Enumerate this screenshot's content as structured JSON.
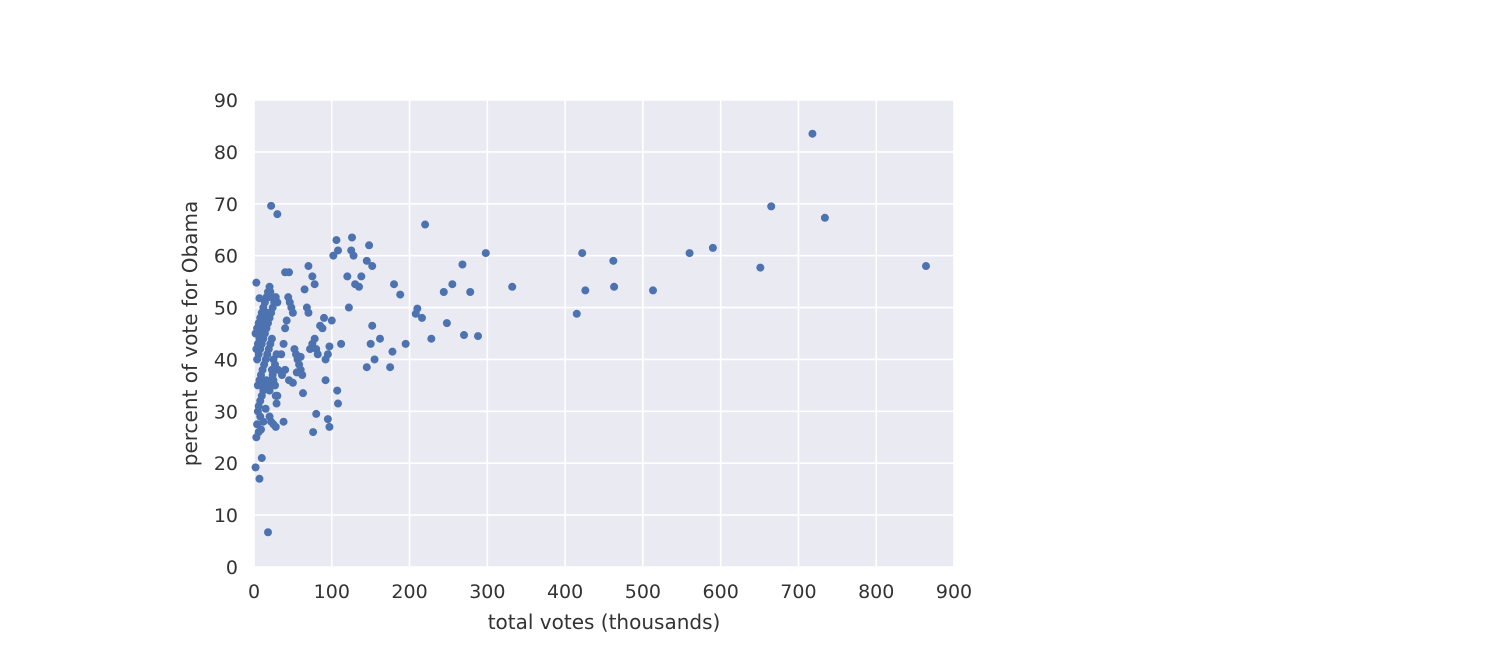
{
  "chart_data": {
    "type": "scatter",
    "title": "",
    "xlabel": "total votes (thousands)",
    "ylabel": "percent of vote for Obama",
    "xlim": [
      0,
      900
    ],
    "ylim": [
      0,
      90
    ],
    "xticks": [
      "0",
      "100",
      "200",
      "300",
      "400",
      "500",
      "600",
      "700",
      "800",
      "900"
    ],
    "yticks": [
      "0",
      "10",
      "20",
      "30",
      "40",
      "50",
      "60",
      "70",
      "80",
      "90"
    ],
    "grid": true,
    "legend": "none",
    "colors": {
      "point": "#4c72b0",
      "plot_bg": "#eaeaf2",
      "grid": "#ffffff",
      "text": "#333333"
    },
    "series": [
      {
        "points": [
          [
            2,
            19.2
          ],
          [
            7,
            17
          ],
          [
            10,
            21
          ],
          [
            18,
            6.7
          ],
          [
            22,
            69.6
          ],
          [
            30,
            68
          ],
          [
            3,
            25
          ],
          [
            6,
            26
          ],
          [
            9,
            26.5
          ],
          [
            4,
            27.5
          ],
          [
            8,
            29
          ],
          [
            12,
            28
          ],
          [
            15,
            30.5
          ],
          [
            20,
            29
          ],
          [
            22,
            28
          ],
          [
            25,
            27.5
          ],
          [
            28,
            27
          ],
          [
            38,
            28
          ],
          [
            5,
            30
          ],
          [
            6,
            31
          ],
          [
            8,
            32
          ],
          [
            10,
            33
          ],
          [
            12,
            34
          ],
          [
            14,
            35
          ],
          [
            16,
            36
          ],
          [
            18,
            35
          ],
          [
            20,
            34
          ],
          [
            22,
            36
          ],
          [
            24,
            37
          ],
          [
            26,
            38
          ],
          [
            28,
            33
          ],
          [
            30,
            33
          ],
          [
            4,
            40
          ],
          [
            6,
            41
          ],
          [
            8,
            42
          ],
          [
            10,
            43
          ],
          [
            12,
            44
          ],
          [
            14,
            45
          ],
          [
            16,
            46
          ],
          [
            18,
            47
          ],
          [
            20,
            48
          ],
          [
            22,
            49
          ],
          [
            24,
            50
          ],
          [
            26,
            51
          ],
          [
            28,
            52
          ],
          [
            30,
            51
          ],
          [
            3,
            42
          ],
          [
            5,
            43
          ],
          [
            7,
            44
          ],
          [
            9,
            45
          ],
          [
            11,
            46
          ],
          [
            13,
            47
          ],
          [
            15,
            48
          ],
          [
            17,
            49
          ],
          [
            19,
            52
          ],
          [
            21,
            53
          ],
          [
            23,
            44
          ],
          [
            25,
            40
          ],
          [
            27,
            39
          ],
          [
            29,
            41
          ],
          [
            5,
            35
          ],
          [
            7,
            36
          ],
          [
            9,
            37
          ],
          [
            11,
            38
          ],
          [
            13,
            39
          ],
          [
            15,
            40
          ],
          [
            17,
            41
          ],
          [
            19,
            42
          ],
          [
            21,
            43
          ],
          [
            23,
            38
          ],
          [
            25,
            36
          ],
          [
            27,
            35
          ],
          [
            29,
            31.5
          ],
          [
            31,
            38
          ],
          [
            2,
            45
          ],
          [
            4,
            46
          ],
          [
            6,
            47
          ],
          [
            8,
            48
          ],
          [
            10,
            49
          ],
          [
            12,
            50
          ],
          [
            14,
            51
          ],
          [
            16,
            52
          ],
          [
            18,
            53
          ],
          [
            20,
            54
          ],
          [
            3,
            54.8
          ],
          [
            7,
            51.8
          ],
          [
            35,
            41
          ],
          [
            38,
            43
          ],
          [
            40,
            46
          ],
          [
            42,
            47.5
          ],
          [
            44,
            52
          ],
          [
            46,
            51
          ],
          [
            48,
            50
          ],
          [
            50,
            49
          ],
          [
            52,
            42
          ],
          [
            54,
            41
          ],
          [
            56,
            40
          ],
          [
            58,
            39
          ],
          [
            60,
            38
          ],
          [
            62,
            37
          ],
          [
            36,
            37
          ],
          [
            40,
            38
          ],
          [
            45,
            36
          ],
          [
            50,
            35.5
          ],
          [
            55,
            37.5
          ],
          [
            60,
            40.5
          ],
          [
            40,
            56.8
          ],
          [
            45,
            56.8
          ],
          [
            65,
            53.5
          ],
          [
            68,
            50
          ],
          [
            70,
            58
          ],
          [
            75,
            56
          ],
          [
            78,
            54.5
          ],
          [
            70,
            49
          ],
          [
            72,
            42
          ],
          [
            75,
            43
          ],
          [
            78,
            44
          ],
          [
            80,
            42
          ],
          [
            82,
            41
          ],
          [
            85,
            46.5
          ],
          [
            88,
            46
          ],
          [
            90,
            48
          ],
          [
            92,
            40
          ],
          [
            95,
            41
          ],
          [
            97,
            42.5
          ],
          [
            100,
            47.5
          ],
          [
            63,
            33.5
          ],
          [
            80,
            29.5
          ],
          [
            92,
            36
          ],
          [
            95,
            28.5
          ],
          [
            97,
            27
          ],
          [
            107,
            34
          ],
          [
            108,
            31.5
          ],
          [
            76,
            26
          ],
          [
            102,
            60
          ],
          [
            106,
            63
          ],
          [
            108,
            61
          ],
          [
            112,
            43
          ],
          [
            120,
            56
          ],
          [
            122,
            50
          ],
          [
            125,
            61
          ],
          [
            128,
            60
          ],
          [
            126,
            63.5
          ],
          [
            130,
            54.5
          ],
          [
            135,
            54
          ],
          [
            138,
            56
          ],
          [
            145,
            59
          ],
          [
            148,
            62
          ],
          [
            152,
            58
          ],
          [
            145,
            38.5
          ],
          [
            150,
            43
          ],
          [
            155,
            40
          ],
          [
            152,
            46.5
          ],
          [
            162,
            44
          ],
          [
            175,
            38.5
          ],
          [
            178,
            41.5
          ],
          [
            180,
            54.5
          ],
          [
            188,
            52.5
          ],
          [
            195,
            43
          ],
          [
            208,
            48.8
          ],
          [
            210,
            49.8
          ],
          [
            216,
            48
          ],
          [
            220,
            66
          ],
          [
            228,
            44
          ],
          [
            244,
            53
          ],
          [
            248,
            47
          ],
          [
            255,
            54.5
          ],
          [
            270,
            44.7
          ],
          [
            268,
            58.3
          ],
          [
            278,
            53
          ],
          [
            288,
            44.5
          ],
          [
            298,
            60.5
          ],
          [
            332,
            54
          ],
          [
            415,
            48.8
          ],
          [
            422,
            60.5
          ],
          [
            426,
            53.3
          ],
          [
            462,
            59
          ],
          [
            463,
            54
          ],
          [
            513,
            53.3
          ],
          [
            560,
            60.5
          ],
          [
            590,
            61.5
          ],
          [
            651,
            57.7
          ],
          [
            665,
            69.5
          ],
          [
            718,
            83.5
          ],
          [
            734,
            67.3
          ],
          [
            864,
            58
          ]
        ]
      }
    ]
  }
}
